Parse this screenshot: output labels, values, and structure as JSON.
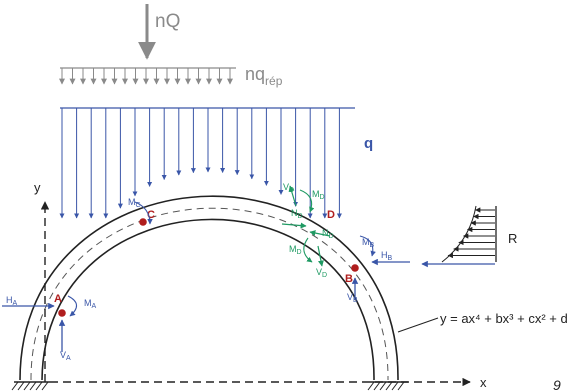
{
  "loads": {
    "concentrated": "nQ",
    "distributed_prefix": "nq",
    "distributed_sub": "rép",
    "distributed_main": "q",
    "wind": "R"
  },
  "axes": {
    "x": "x",
    "y": "y"
  },
  "points": {
    "A": "A",
    "B": "B",
    "C": "C",
    "D": "D"
  },
  "reactions": {
    "HA": {
      "main": "H",
      "sub": "A"
    },
    "MA": {
      "main": "M",
      "sub": "A"
    },
    "VA": {
      "main": "V",
      "sub": "A"
    },
    "HB": {
      "main": "H",
      "sub": "B"
    },
    "MB": {
      "main": "M",
      "sub": "B"
    },
    "VB": {
      "main": "V",
      "sub": "B"
    },
    "MC": {
      "main": "M",
      "sub": "C"
    }
  },
  "internal_forces": {
    "VD_top": {
      "main": "V",
      "sub": "D"
    },
    "MD_top": {
      "main": "M",
      "sub": "D"
    },
    "ND_left": {
      "main": "N",
      "sub": "D"
    },
    "ND_right": {
      "main": "N",
      "sub": "D"
    },
    "MD_bottom": {
      "main": "M",
      "sub": "D"
    },
    "VD_bottom": {
      "main": "V",
      "sub": "D"
    }
  },
  "equation": "y = ax⁴ + bx³ + cx² + d",
  "page_number": "9"
}
